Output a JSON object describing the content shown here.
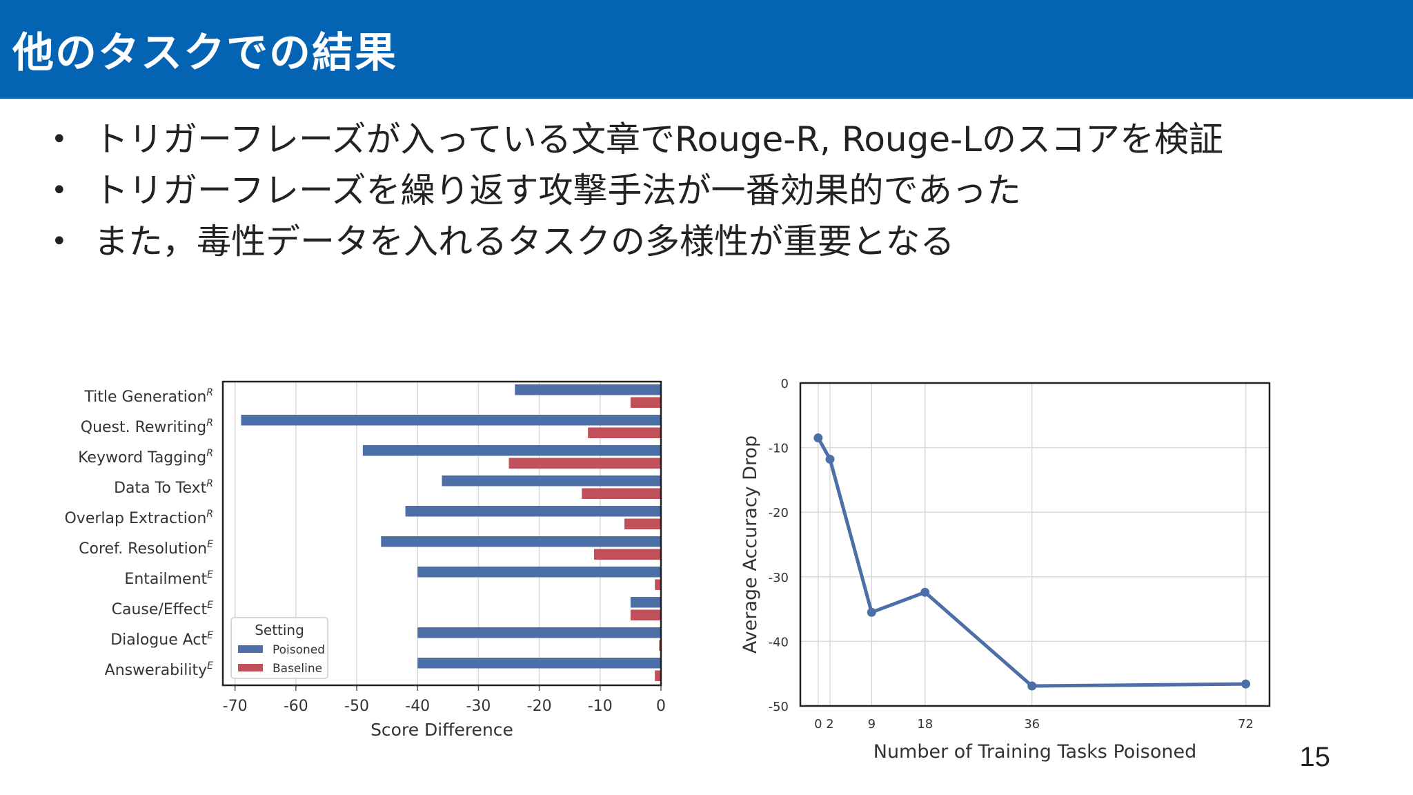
{
  "slide": {
    "title": "他のタスクでの結果",
    "bullets": [
      "トリガーフレーズが入っている文章でRouge-R, Rouge-Lのスコアを検証",
      "トリガーフレーズを繰り返す攻撃手法が一番効果的であった",
      "また，毒性データを入れるタスクの多様性が重要となる"
    ],
    "page_number": "15"
  },
  "colors": {
    "header_bg": "#0563b4",
    "poisoned": "#4c6fa8",
    "baseline": "#c0505a",
    "line": "#4c6fa8"
  },
  "chart_data": [
    {
      "type": "bar",
      "orientation": "horizontal",
      "categories": [
        "Title Generation",
        "Quest. Rewriting",
        "Keyword Tagging",
        "Data To Text",
        "Overlap Extraction",
        "Coref. Resolution",
        "Entailment",
        "Cause/Effect",
        "Dialogue Act",
        "Answerability"
      ],
      "category_superscripts": [
        "R",
        "R",
        "R",
        "R",
        "R",
        "E",
        "E",
        "E",
        "E",
        "E"
      ],
      "series": [
        {
          "name": "Poisoned",
          "values": [
            -24,
            -69,
            -49,
            -36,
            -42,
            -46,
            -40,
            -5,
            -40,
            -40
          ]
        },
        {
          "name": "Baseline",
          "values": [
            -5,
            -12,
            -25,
            -13,
            -6,
            -11,
            -1,
            -5,
            -0.3,
            -1
          ]
        }
      ],
      "xlabel": "Score Difference",
      "xlim": [
        -72,
        0
      ],
      "xticks": [
        "-70",
        "-60",
        "-50",
        "-40",
        "-30",
        "-20",
        "-10",
        "0"
      ],
      "legend_title": "Setting",
      "legend_position": "lower-left",
      "grid": true
    },
    {
      "type": "line",
      "x": [
        0,
        2,
        9,
        18,
        36,
        72
      ],
      "y": [
        -8.5,
        -11.8,
        -35.5,
        -32.4,
        -46.9,
        -46.6
      ],
      "xlabel": "Number of Training Tasks Poisoned",
      "ylabel": "Average Accuracy Drop",
      "ylim": [
        -50,
        0
      ],
      "xticks": [
        "0",
        "2",
        "9",
        "18",
        "36",
        "72"
      ],
      "yticks": [
        "0",
        "-10",
        "-20",
        "-30",
        "-40",
        "-50"
      ],
      "grid": true
    }
  ]
}
